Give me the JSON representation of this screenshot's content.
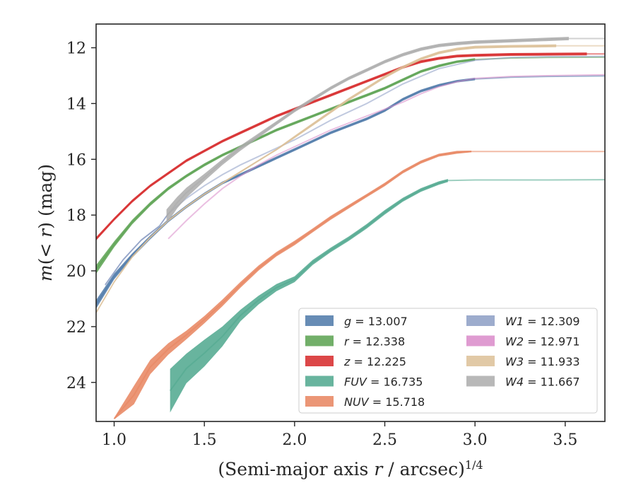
{
  "chart_data": {
    "type": "line",
    "xlabel": "(Semi-major axis r / arcsec)^1/4",
    "ylabel": "m(< r) (mag)",
    "xlim": [
      0.9,
      3.72
    ],
    "ylim": [
      25.4,
      11.15
    ],
    "y_inverted": true,
    "xticks": [
      "1.0",
      "1.5",
      "2.0",
      "2.5",
      "3.0",
      "3.5"
    ],
    "yticks": [
      "12",
      "14",
      "16",
      "18",
      "20",
      "22",
      "24"
    ],
    "grid": false,
    "legend_position": "lower-right",
    "legend_columns": 2,
    "series": [
      {
        "name": "g",
        "legend_value": "= 13.007",
        "color": "#4c78a8",
        "band_end_x": 3.0,
        "x": [
          0.9,
          1.0,
          1.1,
          1.2,
          1.3,
          1.4,
          1.5,
          1.6,
          1.7,
          1.8,
          1.9,
          2.0,
          2.1,
          2.2,
          2.3,
          2.4,
          2.5,
          2.6,
          2.7,
          2.8,
          2.9,
          3.0,
          3.2,
          3.4,
          3.72
        ],
        "y": [
          21.2,
          20.2,
          19.45,
          18.8,
          18.2,
          17.7,
          17.25,
          16.85,
          16.55,
          16.25,
          15.95,
          15.65,
          15.35,
          15.05,
          14.8,
          14.55,
          14.25,
          13.85,
          13.55,
          13.35,
          13.2,
          13.12,
          13.06,
          13.03,
          13.01
        ],
        "band": [
          0.25,
          0.15,
          0.1,
          0.08,
          0.06,
          0.05,
          0.05,
          0.04,
          0.04,
          0.04,
          0.04,
          0.04,
          0.04,
          0.04,
          0.04,
          0.04,
          0.04,
          0.04,
          0.04,
          0.04,
          0.03,
          0.03,
          0,
          0,
          0
        ]
      },
      {
        "name": "r",
        "legend_value": "= 12.338",
        "color": "#59a14f",
        "band_end_x": 3.0,
        "x": [
          0.9,
          1.0,
          1.1,
          1.2,
          1.3,
          1.4,
          1.5,
          1.6,
          1.7,
          1.8,
          1.9,
          2.0,
          2.1,
          2.2,
          2.3,
          2.4,
          2.5,
          2.6,
          2.7,
          2.8,
          2.9,
          3.0,
          3.2,
          3.4,
          3.72
        ],
        "y": [
          19.95,
          19.05,
          18.25,
          17.6,
          17.05,
          16.6,
          16.2,
          15.85,
          15.55,
          15.25,
          14.95,
          14.7,
          14.45,
          14.2,
          13.95,
          13.7,
          13.45,
          13.15,
          12.85,
          12.65,
          12.5,
          12.42,
          12.37,
          12.35,
          12.34
        ],
        "band": [
          0.25,
          0.15,
          0.1,
          0.08,
          0.06,
          0.05,
          0.05,
          0.04,
          0.04,
          0.04,
          0.04,
          0.04,
          0.04,
          0.04,
          0.04,
          0.04,
          0.04,
          0.04,
          0.04,
          0.04,
          0.03,
          0.03,
          0,
          0,
          0
        ]
      },
      {
        "name": "z",
        "legend_value": "= 12.225",
        "color": "#d62728",
        "band_end_x": 3.62,
        "x": [
          0.9,
          1.0,
          1.1,
          1.2,
          1.3,
          1.4,
          1.5,
          1.6,
          1.7,
          1.8,
          1.9,
          2.0,
          2.1,
          2.2,
          2.3,
          2.4,
          2.5,
          2.6,
          2.7,
          2.8,
          2.9,
          3.0,
          3.2,
          3.4,
          3.62,
          3.72
        ],
        "y": [
          18.85,
          18.15,
          17.5,
          16.95,
          16.5,
          16.05,
          15.7,
          15.35,
          15.05,
          14.75,
          14.45,
          14.2,
          13.95,
          13.7,
          13.45,
          13.2,
          12.95,
          12.7,
          12.5,
          12.38,
          12.3,
          12.27,
          12.24,
          12.23,
          12.22,
          12.22
        ],
        "band": [
          0.06,
          0.05,
          0.05,
          0.04,
          0.04,
          0.04,
          0.04,
          0.04,
          0.04,
          0.04,
          0.04,
          0.04,
          0.04,
          0.04,
          0.04,
          0.04,
          0.04,
          0.04,
          0.04,
          0.04,
          0.04,
          0.04,
          0.04,
          0.04,
          0.04,
          0
        ]
      },
      {
        "name": "FUV",
        "legend_value": "= 16.735",
        "color": "#4ea78d",
        "band_end_x": 2.85,
        "x": [
          1.31,
          1.4,
          1.5,
          1.6,
          1.7,
          1.8,
          1.9,
          2.0,
          2.1,
          2.2,
          2.3,
          2.4,
          2.5,
          2.6,
          2.7,
          2.8,
          2.85,
          3.0,
          3.2,
          3.4,
          3.72
        ],
        "y": [
          24.3,
          23.5,
          22.95,
          22.35,
          21.6,
          21.05,
          20.6,
          20.3,
          19.7,
          19.25,
          18.85,
          18.4,
          17.9,
          17.45,
          17.1,
          16.85,
          16.76,
          16.74,
          16.74,
          16.74,
          16.73
        ],
        "band": [
          1.5,
          1.0,
          0.9,
          0.65,
          0.35,
          0.25,
          0.2,
          0.15,
          0.12,
          0.1,
          0.1,
          0.1,
          0.1,
          0.08,
          0.07,
          0.06,
          0.05,
          0,
          0,
          0,
          0
        ]
      },
      {
        "name": "NUV",
        "legend_value": "= 15.718",
        "color": "#e8845e",
        "band_end_x": 2.98,
        "x": [
          1.0,
          1.11,
          1.2,
          1.3,
          1.4,
          1.5,
          1.6,
          1.7,
          1.8,
          1.9,
          2.0,
          2.1,
          2.2,
          2.3,
          2.4,
          2.5,
          2.6,
          2.7,
          2.8,
          2.9,
          2.98,
          3.1,
          3.3,
          3.5,
          3.72
        ],
        "y": [
          25.3,
          24.45,
          23.45,
          22.8,
          22.3,
          21.75,
          21.15,
          20.5,
          19.9,
          19.4,
          19.0,
          18.55,
          18.1,
          17.7,
          17.3,
          16.9,
          16.45,
          16.1,
          15.85,
          15.75,
          15.72,
          15.72,
          15.72,
          15.72,
          15.72
        ],
        "band": [
          0,
          0.6,
          0.45,
          0.35,
          0.25,
          0.2,
          0.18,
          0.15,
          0.12,
          0.1,
          0.1,
          0.08,
          0.08,
          0.07,
          0.06,
          0.06,
          0.05,
          0.05,
          0.04,
          0.04,
          0,
          0,
          0,
          0,
          0
        ]
      },
      {
        "name": "W1",
        "legend_value": "= 12.309",
        "color": "#8c9dc4",
        "band_end_x": 1.3,
        "x": [
          0.95,
          1.05,
          1.15,
          1.25,
          1.3,
          1.4,
          1.5,
          1.6,
          1.7,
          1.8,
          1.9,
          2.0,
          2.2,
          2.4,
          2.6,
          2.8,
          3.0,
          3.2,
          3.4,
          3.72
        ],
        "y": [
          20.5,
          19.6,
          18.9,
          18.4,
          17.95,
          17.4,
          16.95,
          16.55,
          16.2,
          15.9,
          15.6,
          15.3,
          14.6,
          14.0,
          13.3,
          12.75,
          12.45,
          12.35,
          12.32,
          12.31
        ],
        "band": [
          0,
          0,
          0,
          0,
          0,
          0,
          0,
          0,
          0,
          0,
          0,
          0,
          0,
          0,
          0,
          0,
          0,
          0,
          0,
          0
        ]
      },
      {
        "name": "W2",
        "legend_value": "= 12.971",
        "color": "#d98ac9",
        "band_end_x": 1.3,
        "x": [
          1.3,
          1.4,
          1.5,
          1.6,
          1.7,
          1.8,
          1.9,
          2.0,
          2.1,
          2.2,
          2.3,
          2.4,
          2.5,
          2.6,
          2.7,
          2.8,
          2.9,
          3.0,
          3.2,
          3.4,
          3.72
        ],
        "y": [
          18.85,
          18.2,
          17.6,
          17.05,
          16.6,
          16.2,
          15.85,
          15.55,
          15.25,
          14.95,
          14.7,
          14.45,
          14.2,
          13.95,
          13.65,
          13.4,
          13.22,
          13.1,
          13.03,
          13.0,
          12.97
        ],
        "band": [
          0,
          0,
          0,
          0,
          0,
          0,
          0,
          0,
          0,
          0,
          0,
          0,
          0,
          0,
          0,
          0,
          0,
          0,
          0,
          0,
          0
        ]
      },
      {
        "name": "W3",
        "legend_value": "= 11.933",
        "color": "#dcbf97",
        "band_end_x": 3.45,
        "x": [
          0.9,
          1.0,
          1.1,
          1.2,
          1.3,
          1.4,
          1.5,
          1.6,
          1.7,
          1.8,
          1.9,
          2.0,
          2.1,
          2.2,
          2.3,
          2.4,
          2.5,
          2.6,
          2.7,
          2.8,
          2.9,
          3.0,
          3.2,
          3.45,
          3.72
        ],
        "y": [
          21.5,
          20.4,
          19.5,
          18.8,
          18.2,
          17.7,
          17.25,
          16.85,
          16.45,
          16.05,
          15.65,
          15.2,
          14.75,
          14.3,
          13.85,
          13.45,
          13.05,
          12.7,
          12.4,
          12.18,
          12.05,
          11.98,
          11.95,
          11.93,
          11.93
        ],
        "band": [
          0,
          0,
          0,
          0,
          0,
          0,
          0,
          0,
          0,
          0,
          0,
          0.03,
          0.04,
          0.04,
          0.04,
          0.04,
          0.04,
          0.04,
          0.04,
          0.04,
          0.04,
          0.04,
          0.04,
          0.04,
          0
        ]
      },
      {
        "name": "W4",
        "legend_value": "= 11.667",
        "color": "#ababab",
        "band_end_x": 3.52,
        "x": [
          1.29,
          1.35,
          1.4,
          1.5,
          1.6,
          1.7,
          1.8,
          1.9,
          2.0,
          2.1,
          2.2,
          2.3,
          2.4,
          2.5,
          2.6,
          2.7,
          2.8,
          2.9,
          3.0,
          3.2,
          3.4,
          3.52,
          3.72
        ],
        "y": [
          18.05,
          17.55,
          17.2,
          16.65,
          16.1,
          15.6,
          15.15,
          14.7,
          14.25,
          13.85,
          13.45,
          13.1,
          12.8,
          12.5,
          12.25,
          12.05,
          11.92,
          11.85,
          11.8,
          11.75,
          11.7,
          11.67,
          11.67
        ],
        "band": [
          0.45,
          0.35,
          0.3,
          0.2,
          0.15,
          0.12,
          0.1,
          0.08,
          0.07,
          0.07,
          0.06,
          0.06,
          0.06,
          0.06,
          0.06,
          0.06,
          0.06,
          0.06,
          0.06,
          0.06,
          0.06,
          0.06,
          0
        ]
      }
    ]
  }
}
